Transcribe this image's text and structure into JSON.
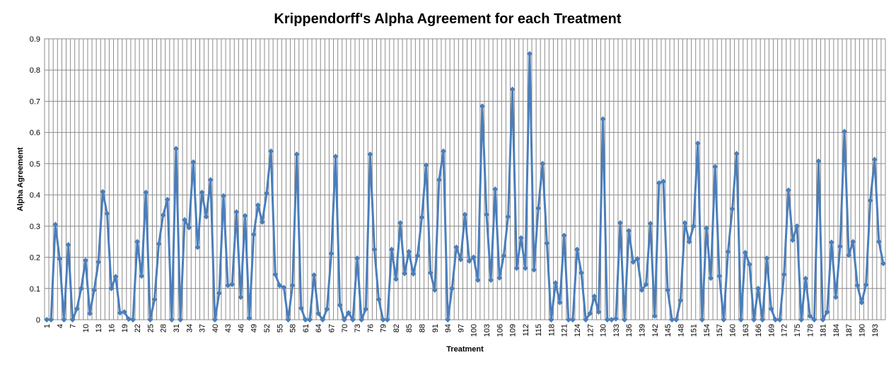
{
  "chart_data": {
    "type": "line",
    "title": "Krippendorff's Alpha Agreement for each Treatment",
    "xlabel": "Treatment",
    "ylabel": "Alpha Agreement",
    "ylim": [
      0,
      0.9
    ],
    "yticks": [
      0,
      0.1,
      0.2,
      0.3,
      0.4,
      0.5,
      0.6,
      0.7,
      0.8,
      0.9
    ],
    "ytick_labels": [
      "0",
      "0.1",
      "0.2",
      "0.3",
      "0.4",
      "0.5",
      "0.6",
      "0.7",
      "0.8",
      "0.9"
    ],
    "x_count": 195,
    "xtick_labels": [
      "1",
      "4",
      "7",
      "10",
      "13",
      "16",
      "19",
      "22",
      "25",
      "28",
      "31",
      "34",
      "37",
      "40",
      "43",
      "46",
      "49",
      "52",
      "55",
      "58",
      "61",
      "64",
      "67",
      "70",
      "73",
      "76",
      "79",
      "82",
      "85",
      "88",
      "91",
      "94",
      "97",
      "100",
      "103",
      "106",
      "109",
      "112",
      "115",
      "118",
      "121",
      "124",
      "127",
      "130",
      "133",
      "136",
      "139",
      "142",
      "145",
      "148",
      "151",
      "154",
      "157",
      "160",
      "163",
      "166",
      "169",
      "172",
      "175",
      "178",
      "181",
      "184",
      "187",
      "190",
      "193"
    ],
    "grid": true,
    "legend": "none",
    "series_color": "#4a7ebb",
    "series": [
      {
        "values": [
          0,
          0,
          0.305,
          0.195,
          0,
          0.24,
          0,
          0.035,
          0.1,
          0.19,
          0.02,
          0.095,
          0.185,
          0.41,
          0.34,
          0.1,
          0.138,
          0.022,
          0.025,
          0.002,
          0,
          0.25,
          0.14,
          0.408,
          0,
          0.065,
          0.243,
          0.335,
          0.385,
          0,
          0.548,
          0,
          0.32,
          0.295,
          0.505,
          0.232,
          0.408,
          0.33,
          0.448,
          0,
          0.085,
          0.397,
          0.11,
          0.113,
          0.345,
          0.072,
          0.333,
          0.005,
          0.273,
          0.367,
          0.313,
          0.405,
          0.54,
          0.145,
          0.11,
          0.103,
          0,
          0.11,
          0.53,
          0.037,
          0,
          0,
          0.143,
          0.02,
          0,
          0.034,
          0.212,
          0.523,
          0.047,
          0,
          0.022,
          0,
          0.197,
          0,
          0.034,
          0.53,
          0.225,
          0.065,
          0,
          0,
          0.225,
          0.13,
          0.31,
          0.148,
          0.218,
          0.147,
          0.205,
          0.328,
          0.495,
          0.15,
          0.095,
          0.448,
          0.54,
          0,
          0.1,
          0.232,
          0.193,
          0.337,
          0.188,
          0.2,
          0.127,
          0.684,
          0.337,
          0.127,
          0.418,
          0.134,
          0.205,
          0.33,
          0.738,
          0.165,
          0.262,
          0.165,
          0.852,
          0.16,
          0.357,
          0.5,
          0.245,
          0,
          0.118,
          0.055,
          0.27,
          0,
          0,
          0.225,
          0.15,
          0,
          0.02,
          0.075,
          0.025,
          0.643,
          0,
          0,
          0.003,
          0.31,
          0,
          0.285,
          0.185,
          0.195,
          0.095,
          0.113,
          0.308,
          0.012,
          0.438,
          0.443,
          0.095,
          0,
          0,
          0.062,
          0.31,
          0.25,
          0.3,
          0.565,
          0,
          0.293,
          0.133,
          0.49,
          0.14,
          0,
          0.218,
          0.355,
          0.532,
          0,
          0.215,
          0.177,
          0,
          0.1,
          0,
          0.197,
          0.035,
          0,
          0,
          0.145,
          0.415,
          0.255,
          0.3,
          0,
          0.132,
          0.012,
          0,
          0.508,
          0,
          0.025,
          0.248,
          0.072,
          0.235,
          0.603,
          0.207,
          0.25,
          0.11,
          0.055,
          0.112,
          0.382,
          0.513,
          0.25,
          0.18
        ]
      }
    ]
  }
}
